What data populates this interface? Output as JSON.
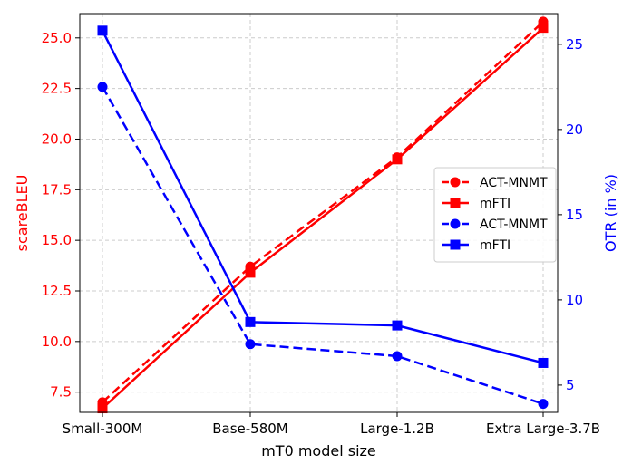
{
  "chart_data": {
    "type": "line",
    "title": "",
    "xlabel": "mT0 model size",
    "categories": [
      "Small-300M",
      "Base-580M",
      "Large-1.2B",
      "Extra Large-3.7B"
    ],
    "left_axis": {
      "label": "scareBLEU",
      "color": "#ff0000",
      "ylim": [
        6.5,
        26.2
      ],
      "ticks": [
        "7.5",
        "10.0",
        "12.5",
        "15.0",
        "17.5",
        "20.0",
        "22.5",
        "25.0"
      ],
      "tick_values": [
        7.5,
        10.0,
        12.5,
        15.0,
        17.5,
        20.0,
        22.5,
        25.0
      ]
    },
    "right_axis": {
      "label": "OTR (in %)",
      "color": "#0000ff",
      "ylim": [
        3.4,
        26.8
      ],
      "ticks": [
        "5",
        "10",
        "15",
        "20",
        "25"
      ],
      "tick_values": [
        5,
        10,
        15,
        20,
        25
      ]
    },
    "grid": true,
    "legend_position": "center-right",
    "series": [
      {
        "name": "ACT-MNMT",
        "axis": "left",
        "color": "#ff0000",
        "marker": "circle",
        "linestyle": "dashed",
        "values": [
          7.0,
          13.7,
          19.1,
          25.8
        ]
      },
      {
        "name": "mFTI",
        "axis": "left",
        "color": "#ff0000",
        "marker": "square",
        "linestyle": "solid",
        "values": [
          6.7,
          13.4,
          19.0,
          25.5
        ]
      },
      {
        "name": "ACT-MNMT",
        "axis": "right",
        "color": "#0000ff",
        "marker": "circle",
        "linestyle": "dashed",
        "values": [
          22.5,
          7.4,
          6.7,
          3.9
        ]
      },
      {
        "name": "mFTI",
        "axis": "right",
        "color": "#0000ff",
        "marker": "square",
        "linestyle": "solid",
        "values": [
          25.8,
          8.7,
          8.5,
          6.3
        ]
      }
    ]
  }
}
